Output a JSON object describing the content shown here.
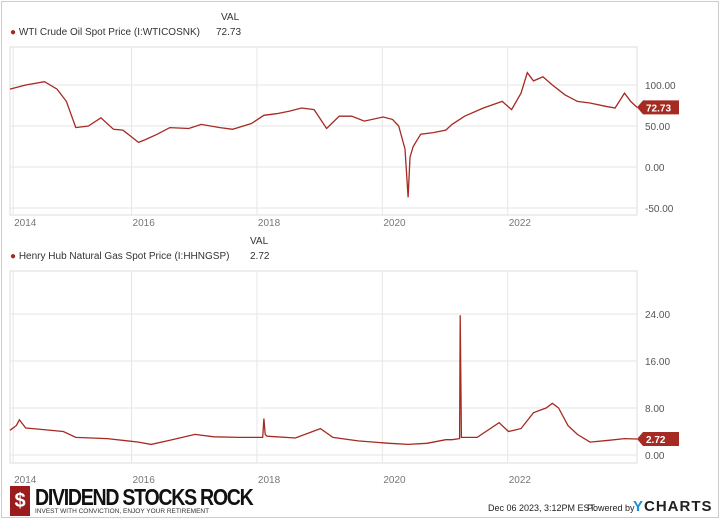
{
  "chart_data": [
    {
      "type": "line",
      "title": "WTI Crude Oil Spot Price (I:WTICOSNK)",
      "val_header": "VAL",
      "last_value": "72.73",
      "color": "#a52a22",
      "ylim": [
        -55,
        125
      ],
      "yticks": [
        100,
        50,
        0,
        -50
      ],
      "ytick_labels": [
        "100.00",
        "50.00",
        "0.00",
        "-50.00"
      ],
      "xlim": [
        2013.95,
        2023.95
      ],
      "xticks": [
        2014,
        2016,
        2018,
        2020,
        2022
      ],
      "xtick_labels": [
        "2014",
        "2016",
        "2018",
        "2020",
        "2022"
      ],
      "x": [
        2013.95,
        2014.2,
        2014.5,
        2014.7,
        2014.85,
        2015.0,
        2015.2,
        2015.4,
        2015.6,
        2015.75,
        2016.0,
        2016.1,
        2016.3,
        2016.5,
        2016.8,
        2017.0,
        2017.3,
        2017.5,
        2017.8,
        2018.0,
        2018.2,
        2018.4,
        2018.6,
        2018.8,
        2019.0,
        2019.2,
        2019.4,
        2019.6,
        2019.9,
        2020.05,
        2020.15,
        2020.25,
        2020.3,
        2020.33,
        2020.38,
        2020.5,
        2020.7,
        2020.9,
        2021.0,
        2021.2,
        2021.5,
        2021.8,
        2021.95,
        2022.1,
        2022.2,
        2022.3,
        2022.45,
        2022.6,
        2022.8,
        2023.0,
        2023.2,
        2023.45,
        2023.6,
        2023.75,
        2023.85,
        2023.95
      ],
      "y": [
        95,
        100,
        104,
        95,
        80,
        48,
        50,
        60,
        46,
        45,
        30,
        33,
        40,
        48,
        47,
        52,
        48,
        46,
        53,
        63,
        65,
        68,
        72,
        70,
        47,
        62,
        62,
        56,
        61,
        58,
        50,
        22,
        -37,
        12,
        25,
        40,
        42,
        45,
        52,
        62,
        72,
        80,
        70,
        90,
        115,
        105,
        110,
        100,
        88,
        80,
        78,
        74,
        72,
        90,
        80,
        72.73
      ]
    },
    {
      "type": "line",
      "title": "Henry Hub Natural Gas Spot Price (I:HHNGSP)",
      "val_header": "VAL",
      "last_value": "2.72",
      "color": "#a52a22",
      "ylim": [
        -1,
        30
      ],
      "yticks": [
        24,
        16,
        8,
        0
      ],
      "ytick_labels": [
        "24.00",
        "16.00",
        "8.00",
        "0.00"
      ],
      "xlim": [
        2013.95,
        2023.95
      ],
      "xticks": [
        2014,
        2016,
        2018,
        2020,
        2022
      ],
      "xtick_labels": [
        "2014",
        "2016",
        "2018",
        "2020",
        "2022"
      ],
      "x": [
        2013.95,
        2014.05,
        2014.1,
        2014.2,
        2014.4,
        2014.8,
        2015.0,
        2015.5,
        2016.0,
        2016.2,
        2016.5,
        2016.9,
        2017.2,
        2017.6,
        2017.98,
        2018.0,
        2018.02,
        2018.05,
        2018.5,
        2018.9,
        2019.1,
        2019.5,
        2020.0,
        2020.3,
        2020.6,
        2020.9,
        2021.0,
        2021.12,
        2021.13,
        2021.15,
        2021.4,
        2021.75,
        2021.9,
        2022.1,
        2022.3,
        2022.5,
        2022.6,
        2022.7,
        2022.85,
        2023.0,
        2023.2,
        2023.5,
        2023.75,
        2023.95
      ],
      "y": [
        4.2,
        5,
        6,
        4.6,
        4.4,
        4,
        3,
        2.8,
        2.2,
        1.8,
        2.5,
        3.5,
        3.1,
        3,
        3,
        6.2,
        3.5,
        3.2,
        2.9,
        4.5,
        3,
        2.4,
        2,
        1.8,
        2.0,
        2.6,
        2.6,
        2.8,
        23.8,
        3,
        3,
        5.5,
        4,
        4.5,
        7.2,
        8,
        8.8,
        8,
        5,
        3.5,
        2.2,
        2.5,
        2.8,
        2.72
      ]
    }
  ],
  "footer": {
    "brand": "DIVIDEND STOCKS ROCK",
    "tagline": "INVEST WITH CONVICTION, ENJOY YOUR RETIREMENT",
    "timestamp": "Dec 06 2023, 3:12PM EST.",
    "powered_by": "Powered by",
    "ycharts": "YCHARTS"
  }
}
